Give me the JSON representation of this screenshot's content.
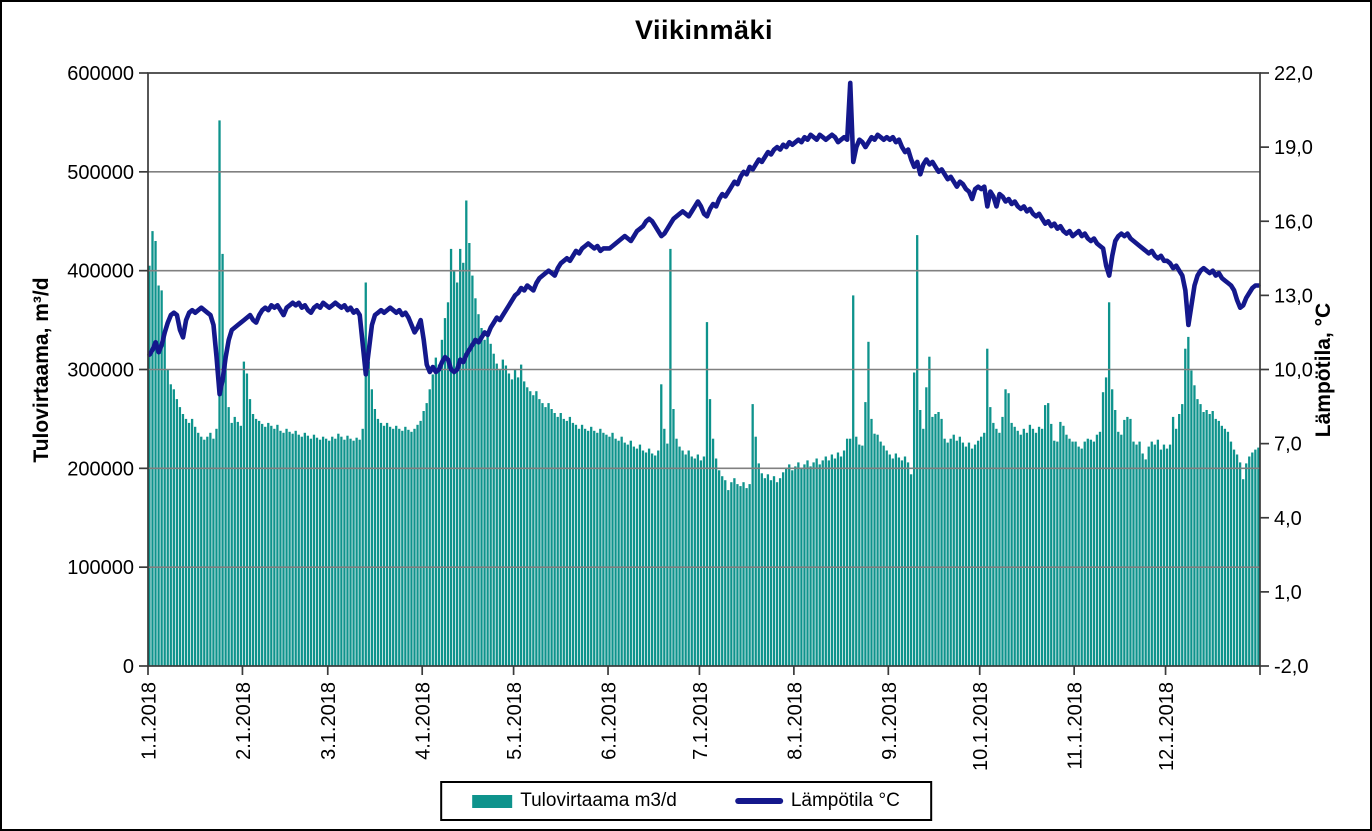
{
  "window": {
    "background": "#ffffff",
    "frame_border": "#000000"
  },
  "title": "Viikinmäki",
  "chart_data": {
    "type": "bar+line",
    "title": "Viikinmäki",
    "x_coverage": "daily values 1.1.2018 - 31.12.2018 (365 days)",
    "x_axis": {
      "tick_labels": [
        "1.1.2018",
        "2.1.2018",
        "3.1.2018",
        "4.1.2018",
        "5.1.2018",
        "6.1.2018",
        "7.1.2018",
        "8.1.2018",
        "9.1.2018",
        "10.1.2018",
        "11.1.2018",
        "12.1.2018"
      ],
      "tick_day_of_year": [
        1,
        32,
        60,
        91,
        121,
        152,
        182,
        213,
        244,
        274,
        305,
        335
      ]
    },
    "left_axis": {
      "title": "Tulovirtaama, m³/d",
      "min": 0,
      "max": 600000,
      "step": 100000,
      "tick_labels": [
        "600000",
        "500000",
        "400000",
        "300000",
        "200000",
        "100000",
        "0"
      ]
    },
    "right_axis": {
      "title": "Lämpötila, °C",
      "min": -2.0,
      "max": 22.0,
      "step": 3.0,
      "tick_labels": [
        "22,0",
        "19,0",
        "16,0",
        "13,0",
        "10,0",
        "7,0",
        "4,0",
        "1,0",
        "-2,0"
      ]
    },
    "grid": {
      "horizontal": true,
      "color": "#808080"
    },
    "axis_line_color": "#3a3a3a",
    "legend": {
      "position": "bottom-center",
      "bordered": true
    },
    "series": [
      {
        "name": "Tulovirtaama m3/d",
        "type": "bar",
        "axis": "left",
        "color": "#0E938C",
        "values": [
          405000,
          440000,
          430000,
          385000,
          380000,
          340000,
          300000,
          285000,
          280000,
          270000,
          262000,
          255000,
          250000,
          246000,
          250000,
          242000,
          236000,
          232000,
          229000,
          232000,
          236000,
          230000,
          240000,
          552000,
          417000,
          310000,
          262000,
          246000,
          252000,
          247000,
          243000,
          308000,
          296000,
          270000,
          255000,
          250000,
          248000,
          245000,
          242000,
          246000,
          243000,
          240000,
          244000,
          238000,
          236000,
          240000,
          237000,
          235000,
          238000,
          234000,
          232000,
          236000,
          233000,
          230000,
          234000,
          231000,
          229000,
          232000,
          230000,
          228000,
          232000,
          230000,
          235000,
          232000,
          229000,
          233000,
          230000,
          228000,
          231000,
          229000,
          240000,
          388000,
          308000,
          280000,
          260000,
          250000,
          246000,
          243000,
          246000,
          242000,
          240000,
          243000,
          240000,
          238000,
          242000,
          239000,
          237000,
          240000,
          244000,
          248000,
          258000,
          266000,
          280000,
          295000,
          312000,
          305000,
          330000,
          352000,
          368000,
          422000,
          400000,
          388000,
          422000,
          408000,
          471000,
          428000,
          395000,
          372000,
          356000,
          342000,
          330000,
          336000,
          326000,
          316000,
          306000,
          300000,
          310000,
          304000,
          296000,
          290000,
          300000,
          292000,
          305000,
          288000,
          282000,
          278000,
          274000,
          278000,
          270000,
          266000,
          262000,
          266000,
          260000,
          256000,
          252000,
          256000,
          250000,
          248000,
          252000,
          246000,
          244000,
          240000,
          244000,
          240000,
          238000,
          242000,
          238000,
          236000,
          240000,
          236000,
          234000,
          232000,
          236000,
          230000,
          228000,
          232000,
          226000,
          224000,
          228000,
          222000,
          220000,
          224000,
          218000,
          216000,
          220000,
          215000,
          213000,
          218000,
          285000,
          240000,
          225000,
          422000,
          260000,
          230000,
          222000,
          218000,
          214000,
          218000,
          212000,
          210000,
          214000,
          208000,
          212000,
          348000,
          270000,
          230000,
          210000,
          198000,
          192000,
          188000,
          178000,
          186000,
          190000,
          184000,
          182000,
          186000,
          180000,
          184000,
          265000,
          232000,
          205000,
          195000,
          190000,
          194000,
          188000,
          192000,
          186000,
          190000,
          196000,
          200000,
          204000,
          198000,
          202000,
          206000,
          200000,
          204000,
          208000,
          202000,
          206000,
          210000,
          204000,
          208000,
          212000,
          208000,
          214000,
          210000,
          216000,
          212000,
          218000,
          230000,
          230000,
          375000,
          232000,
          224000,
          223000,
          267000,
          328000,
          250000,
          235000,
          234000,
          227000,
          223000,
          218000,
          214000,
          210000,
          215000,
          211000,
          208000,
          212000,
          206000,
          194000,
          297000,
          436000,
          259000,
          240000,
          282000,
          313000,
          252000,
          255000,
          257000,
          250000,
          230000,
          226000,
          230000,
          234000,
          228000,
          232000,
          226000,
          222000,
          226000,
          220000,
          224000,
          228000,
          232000,
          236000,
          321000,
          262000,
          246000,
          240000,
          236000,
          252000,
          280000,
          276000,
          246000,
          242000,
          238000,
          234000,
          240000,
          236000,
          244000,
          240000,
          236000,
          242000,
          240000,
          264000,
          266000,
          245000,
          228000,
          227000,
          247000,
          243000,
          234000,
          230000,
          227000,
          227000,
          222000,
          220000,
          227000,
          230000,
          229000,
          227000,
          234000,
          237000,
          277000,
          292000,
          368000,
          280000,
          259000,
          237000,
          234000,
          249000,
          252000,
          250000,
          227000,
          224000,
          227000,
          215000,
          209000,
          222000,
          227000,
          224000,
          229000,
          219000,
          224000,
          220000,
          224000,
          252000,
          240000,
          255000,
          265000,
          321000,
          333000,
          299000,
          284000,
          270000,
          265000,
          257000,
          259000,
          255000,
          258000,
          250000,
          248000,
          243000,
          240000,
          237000,
          227000,
          219000,
          214000,
          206000,
          189000,
          205000,
          212000,
          216000,
          219000,
          221000
        ]
      },
      {
        "name": "Lämpötila °C",
        "type": "line",
        "axis": "right",
        "color": "#14188C",
        "values": [
          10.6,
          10.8,
          11.1,
          10.7,
          11.0,
          11.5,
          11.9,
          12.2,
          12.3,
          12.2,
          11.6,
          11.3,
          12.0,
          12.3,
          12.4,
          12.3,
          12.4,
          12.5,
          12.4,
          12.3,
          12.2,
          11.8,
          10.5,
          9.0,
          9.6,
          10.5,
          11.2,
          11.6,
          11.7,
          11.8,
          11.9,
          12.0,
          12.1,
          12.2,
          12.0,
          11.9,
          12.2,
          12.4,
          12.5,
          12.4,
          12.6,
          12.5,
          12.6,
          12.4,
          12.2,
          12.5,
          12.6,
          12.7,
          12.6,
          12.7,
          12.5,
          12.6,
          12.4,
          12.3,
          12.5,
          12.6,
          12.5,
          12.7,
          12.6,
          12.5,
          12.6,
          12.7,
          12.6,
          12.5,
          12.6,
          12.4,
          12.5,
          12.3,
          12.4,
          12.2,
          11.0,
          9.8,
          10.8,
          11.8,
          12.2,
          12.3,
          12.4,
          12.3,
          12.4,
          12.5,
          12.4,
          12.3,
          12.4,
          12.2,
          12.3,
          12.1,
          11.8,
          11.5,
          11.7,
          12.0,
          11.2,
          10.2,
          9.9,
          10.1,
          9.9,
          10.0,
          10.3,
          10.5,
          10.4,
          10.0,
          9.9,
          10.0,
          10.4,
          10.3,
          10.6,
          10.8,
          11.0,
          11.2,
          11.1,
          11.3,
          11.5,
          11.4,
          11.7,
          11.9,
          12.1,
          12.0,
          12.2,
          12.4,
          12.6,
          12.8,
          13.0,
          13.1,
          13.3,
          13.2,
          13.4,
          13.3,
          13.2,
          13.5,
          13.7,
          13.8,
          13.9,
          14.0,
          13.9,
          13.8,
          14.1,
          14.3,
          14.4,
          14.5,
          14.4,
          14.6,
          14.8,
          14.7,
          14.9,
          15.0,
          15.1,
          15.0,
          14.9,
          15.0,
          14.8,
          14.9,
          14.9,
          14.9,
          15.0,
          15.1,
          15.2,
          15.3,
          15.4,
          15.3,
          15.2,
          15.4,
          15.6,
          15.7,
          15.8,
          16.0,
          16.1,
          16.0,
          15.8,
          15.6,
          15.4,
          15.5,
          15.7,
          15.9,
          16.1,
          16.2,
          16.3,
          16.4,
          16.3,
          16.2,
          16.4,
          16.6,
          16.8,
          16.6,
          16.3,
          16.2,
          16.5,
          16.7,
          16.6,
          16.9,
          17.1,
          17.0,
          17.2,
          17.4,
          17.6,
          17.5,
          17.8,
          18.0,
          17.9,
          18.2,
          18.1,
          18.3,
          18.5,
          18.4,
          18.6,
          18.8,
          18.7,
          18.9,
          19.0,
          18.9,
          19.1,
          19.0,
          19.2,
          19.1,
          19.2,
          19.3,
          19.2,
          19.4,
          19.3,
          19.5,
          19.4,
          19.3,
          19.5,
          19.4,
          19.3,
          19.4,
          19.5,
          19.4,
          19.2,
          19.3,
          19.4,
          19.3,
          21.6,
          18.4,
          19.0,
          19.3,
          19.2,
          19.0,
          19.2,
          19.4,
          19.3,
          19.5,
          19.4,
          19.3,
          19.4,
          19.3,
          19.4,
          19.2,
          19.3,
          19.0,
          18.8,
          18.9,
          18.5,
          18.2,
          18.4,
          17.9,
          18.3,
          18.5,
          18.3,
          18.4,
          18.2,
          18.0,
          18.1,
          17.9,
          17.7,
          17.8,
          17.6,
          17.4,
          17.6,
          17.5,
          17.3,
          17.2,
          16.9,
          17.3,
          17.4,
          17.3,
          17.4,
          16.6,
          17.2,
          17.0,
          16.6,
          17.1,
          17.0,
          16.8,
          16.9,
          16.7,
          16.8,
          16.6,
          16.5,
          16.6,
          16.4,
          16.5,
          16.3,
          16.2,
          16.3,
          16.1,
          15.9,
          16.0,
          15.8,
          15.9,
          15.7,
          15.8,
          15.6,
          15.5,
          15.6,
          15.4,
          15.5,
          15.6,
          15.4,
          15.5,
          15.3,
          15.2,
          15.3,
          15.1,
          15.0,
          14.9,
          14.2,
          13.8,
          14.6,
          15.2,
          15.4,
          15.5,
          15.4,
          15.5,
          15.3,
          15.2,
          15.1,
          15.0,
          14.9,
          14.8,
          14.7,
          14.8,
          14.6,
          14.5,
          14.6,
          14.4,
          14.4,
          14.3,
          14.1,
          14.2,
          14.0,
          13.8,
          13.2,
          11.8,
          12.6,
          13.4,
          13.8,
          14.0,
          14.1,
          14.0,
          13.9,
          14.0,
          13.8,
          13.9,
          13.7,
          13.6,
          13.5,
          13.4,
          13.2,
          12.8,
          12.5,
          12.6,
          12.9,
          13.1,
          13.3,
          13.4,
          13.4
        ]
      }
    ]
  }
}
